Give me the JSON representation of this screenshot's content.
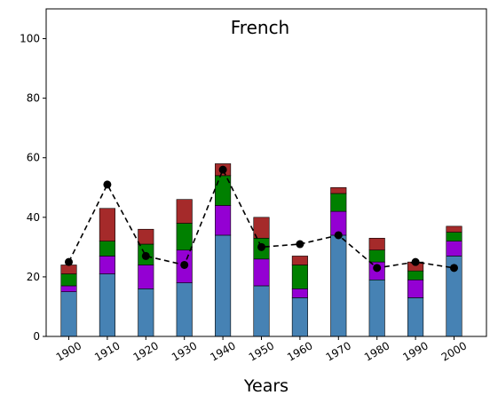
{
  "chart_data": {
    "type": "bar",
    "stacked": true,
    "title": "French",
    "xlabel": "Years",
    "ylabel": "",
    "ylim": [
      0,
      110
    ],
    "yticks": [
      0,
      20,
      40,
      60,
      80,
      100
    ],
    "categories": [
      "1900",
      "1910",
      "1920",
      "1930",
      "1940",
      "1950",
      "1960",
      "1970",
      "1980",
      "1990",
      "2000"
    ],
    "series": [
      {
        "type": "bar",
        "color": "#4682b4",
        "values": [
          15,
          21,
          16,
          18,
          34,
          17,
          13,
          34,
          19,
          13,
          27
        ]
      },
      {
        "type": "bar",
        "color": "#9400d3",
        "values": [
          2,
          6,
          8,
          11,
          10,
          9,
          3,
          8,
          6,
          6,
          5
        ]
      },
      {
        "type": "bar",
        "color": "#008000",
        "values": [
          4,
          5,
          7,
          9,
          10,
          7,
          8,
          6,
          4,
          3,
          3
        ]
      },
      {
        "type": "bar",
        "color": "#a52a2a",
        "values": [
          3,
          11,
          5,
          8,
          4,
          7,
          3,
          2,
          4,
          3,
          2
        ]
      },
      {
        "type": "line",
        "style": "dashed",
        "marker": "circle",
        "color": "#000000",
        "values": [
          25,
          51,
          27,
          24,
          56,
          30,
          31,
          34,
          23,
          25,
          23
        ]
      }
    ],
    "grid": false,
    "legend": "none"
  }
}
